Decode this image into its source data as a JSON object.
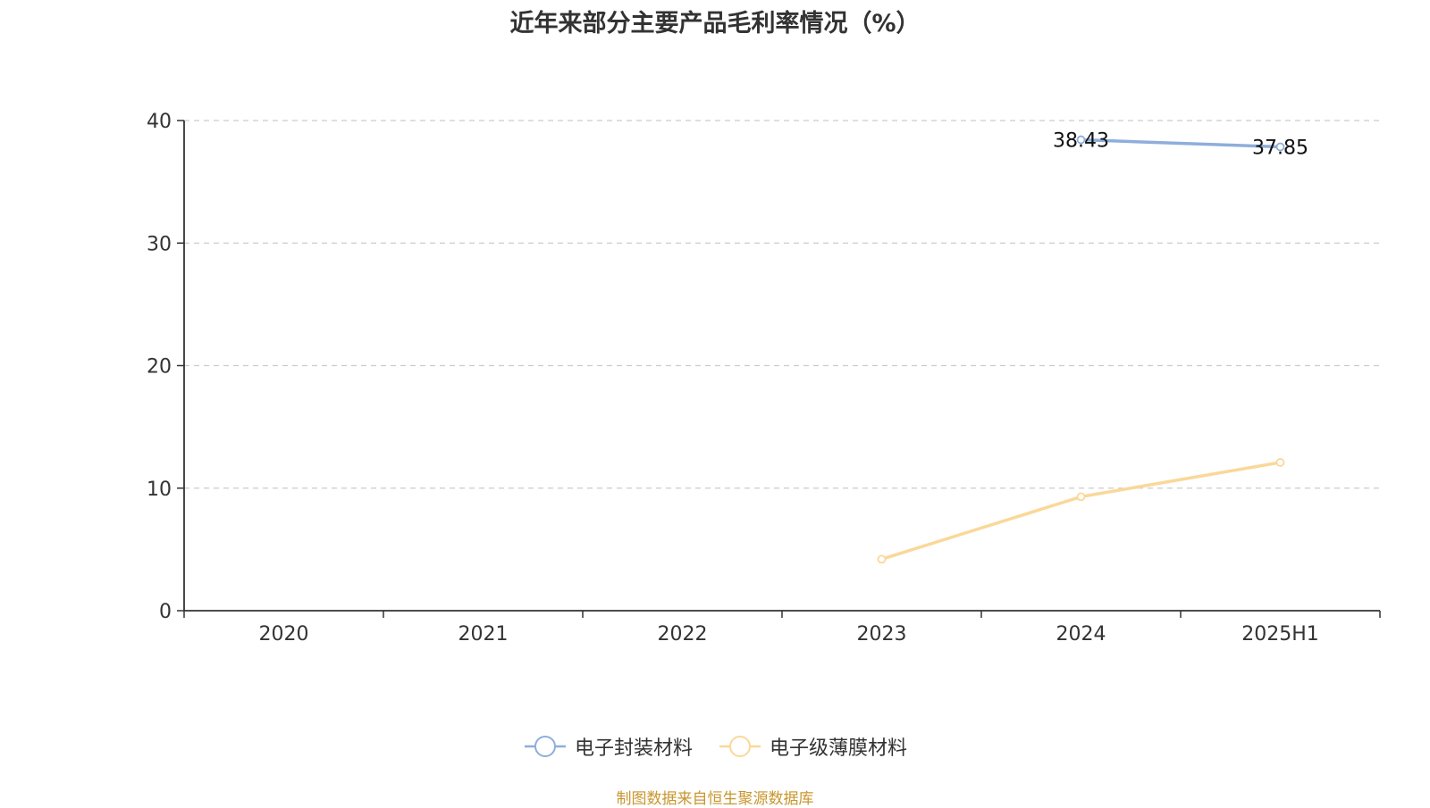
{
  "chart_data": {
    "type": "line",
    "title": "近年来部分主要产品毛利率情况（%）",
    "categories": [
      "2020",
      "2021",
      "2022",
      "2023",
      "2024",
      "2025H1"
    ],
    "ylim": [
      0,
      40
    ],
    "yticks": [
      0,
      10,
      20,
      30,
      40
    ],
    "grid": true,
    "legend_position": "bottom",
    "series": [
      {
        "name": "电子封装材料",
        "color": "#8eaedb",
        "values": [
          null,
          null,
          null,
          null,
          38.43,
          37.85
        ],
        "labels": [
          "",
          "",
          "",
          "",
          "38.43",
          "37.85"
        ]
      },
      {
        "name": "电子级薄膜材料",
        "color": "#fad898",
        "values": [
          null,
          null,
          null,
          4.2,
          9.3,
          12.1
        ],
        "labels": [
          "",
          "",
          "",
          "",
          "",
          ""
        ]
      }
    ],
    "source": "制图数据来自恒生聚源数据库"
  }
}
